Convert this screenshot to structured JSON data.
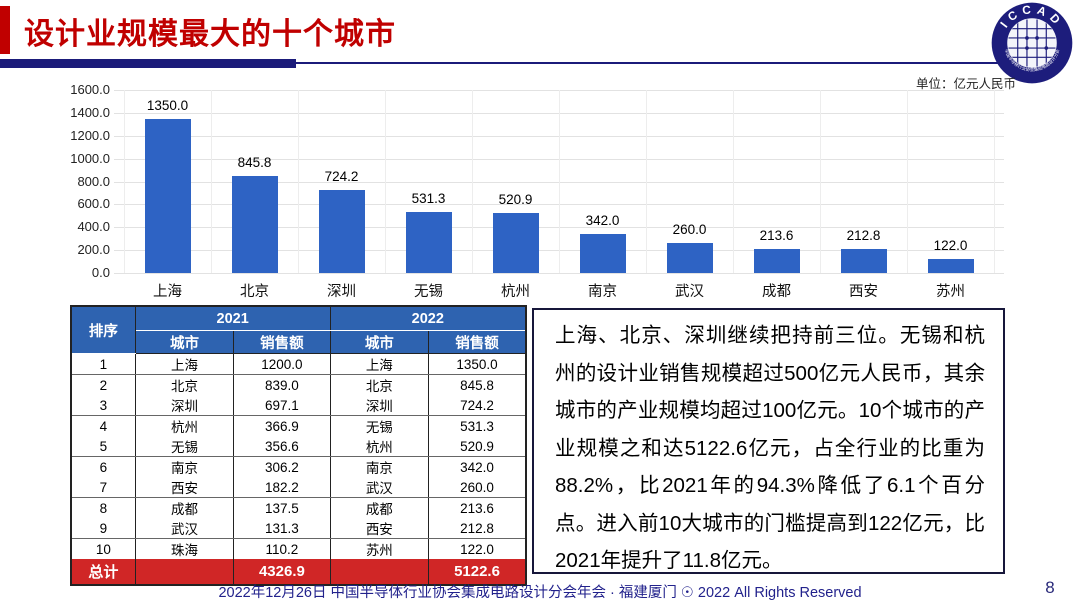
{
  "page": {
    "title": "设计业规模最大的十个城市",
    "unit_label": "单位：亿元人民币"
  },
  "logo": {
    "text": "ICCAD",
    "subtext": "中国半导体行业协会集成电路设计分会"
  },
  "chart_data": {
    "type": "bar",
    "categories": [
      "上海",
      "北京",
      "深圳",
      "无锡",
      "杭州",
      "南京",
      "武汉",
      "成都",
      "西安",
      "苏州"
    ],
    "values": [
      1350.0,
      845.8,
      724.2,
      531.3,
      520.9,
      342.0,
      260.0,
      213.6,
      212.8,
      122.0
    ],
    "data_labels": [
      "1350.0",
      "845.8",
      "724.2",
      "531.3",
      "520.9",
      "342.0",
      "260.0",
      "213.6",
      "212.8",
      "122.0"
    ],
    "title": "",
    "xlabel": "",
    "ylabel": "",
    "ylim": [
      0,
      1600
    ],
    "ytick_step": 200,
    "yticks": [
      "1600.0",
      "1400.0",
      "1200.0",
      "1000.0",
      "800.0",
      "600.0",
      "400.0",
      "200.0",
      "0.0"
    ],
    "grid": true,
    "legend": "none",
    "bar_color": "#2e63c4"
  },
  "table": {
    "rank_header": "排序",
    "year_groups": [
      "2021",
      "2022"
    ],
    "subheaders": [
      "城市",
      "销售额",
      "城市",
      "销售额"
    ],
    "rows": [
      [
        "1",
        "上海",
        "1200.0",
        "上海",
        "1350.0"
      ],
      [
        "2",
        "北京",
        "839.0",
        "北京",
        "845.8"
      ],
      [
        "3",
        "深圳",
        "697.1",
        "深圳",
        "724.2"
      ],
      [
        "4",
        "杭州",
        "366.9",
        "无锡",
        "531.3"
      ],
      [
        "5",
        "无锡",
        "356.6",
        "杭州",
        "520.9"
      ],
      [
        "6",
        "南京",
        "306.2",
        "南京",
        "342.0"
      ],
      [
        "7",
        "西安",
        "182.2",
        "武汉",
        "260.0"
      ],
      [
        "8",
        "成都",
        "137.5",
        "成都",
        "213.6"
      ],
      [
        "9",
        "武汉",
        "131.3",
        "西安",
        "212.8"
      ],
      [
        "10",
        "珠海",
        "110.2",
        "苏州",
        "122.0"
      ]
    ],
    "total_row": [
      "总计",
      "",
      "4326.9",
      "",
      "5122.6"
    ]
  },
  "commentary": "上海、北京、深圳继续把持前三位。无锡和杭州的设计业销售规模超过500亿元人民币，其余城市的产业规模均超过100亿元。10个城市的产业规模之和达5122.6亿元，占全行业的比重为88.2%，比2021年的94.3%降低了6.1个百分点。进入前10大城市的门槛提高到122亿元，比2021年提升了11.8亿元。",
  "footer": {
    "text": "2022年12月26日 中国半导体行业协会集成电路设计分会年会 · 福建厦门 ☉ 2022 All Rights Reserved",
    "page_number": "8"
  },
  "colors": {
    "title_red": "#c00000",
    "bar_blue": "#2e63c4",
    "table_header_blue": "#2e63b0",
    "total_row_red": "#d02626",
    "underline_navy": "#1b1b7a",
    "footer_navy": "#22228c"
  }
}
